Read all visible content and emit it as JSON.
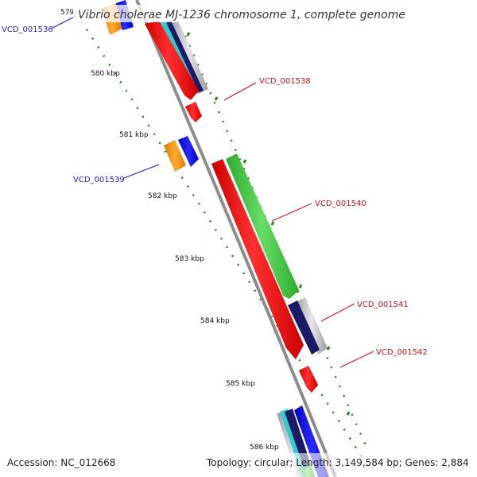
{
  "title": "Vibrio cholerae MJ-1236 chromosome 1, complete genome",
  "footer": {
    "accession": "Accession: NC_012668",
    "stats": "Topology: circular; Length: 3,149,584 bp; Genes: 2,884"
  },
  "ticks": [
    "579",
    "580 kbp",
    "581 kbp",
    "582 kbp",
    "583 kbp",
    "584 kbp",
    "585 kbp",
    "586 kbp"
  ],
  "gene_labels": [
    {
      "name": "VCD_001536",
      "color": "#1a1acc"
    },
    {
      "name": "VCD_001538",
      "color": "#cc1111"
    },
    {
      "name": "VCD_001539",
      "color": "#1a1acc"
    },
    {
      "name": "VCD_001540",
      "color": "#cc1111"
    },
    {
      "name": "VCD_001541",
      "color": "#cc1111"
    },
    {
      "name": "VCD_001542",
      "color": "#cc1111"
    }
  ],
  "colors": {
    "backbone": "#8c8c8c",
    "forward_cds": "#ff1a1a",
    "reverse_cds": "#ff9a1a",
    "blue_feature": "#1a1aff",
    "cyan_feature": "#33cccc",
    "navy_feature": "#1a1a66",
    "green_feature": "#44cc44",
    "tick": "#228822"
  }
}
